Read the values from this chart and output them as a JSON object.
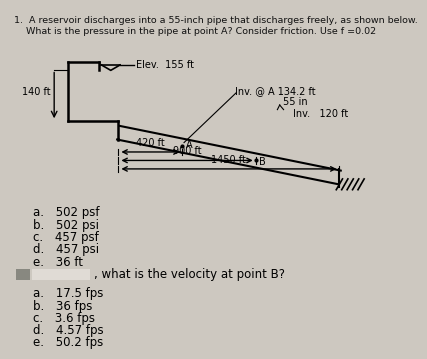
{
  "title_line1": "1.  A reservoir discharges into a 55-inch pipe that discharges freely, as shown below.",
  "title_line2": "    What is the pressure in the pipe at point A? Consider friction. Use f =0.02",
  "bg_color": "#cdc8c0",
  "diagram": {
    "elev_label": "Elev.  155 ft",
    "inv_A_label": "Inv. @ A 134.2 ft",
    "inv_label": "Inv.",
    "inv_120": "120 ft",
    "pipe_55in": "55 in",
    "label_140": "140 ft",
    "label_420": "420 ft",
    "label_900": "900 ft",
    "label_1450": "1450 ft"
  },
  "answers_q1": [
    "a. 502 psf",
    "b. 502 psi",
    "c. 457 psf",
    "d. 457 psi",
    "e. 36 ft"
  ],
  "q2_text": ", what is the velocity at point B?",
  "answers_q2": [
    "a. 17.5 fps",
    "b. 36 fps",
    "c. 3.6 fps",
    "d. 4.57 fps",
    "e. 50.2 fps"
  ],
  "box1_color": "#c0bab5",
  "box2_color": "#e8e2dc"
}
